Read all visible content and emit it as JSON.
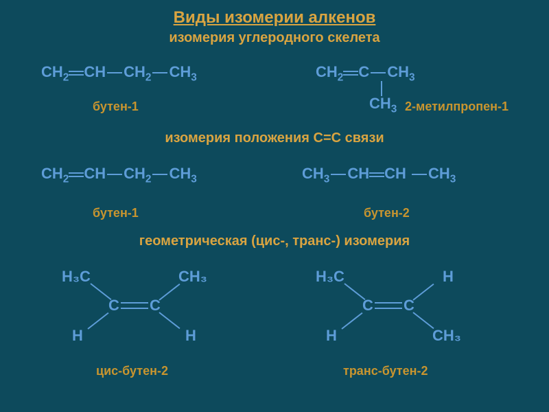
{
  "colors": {
    "background": "#0d4a5c",
    "title": "#d9a441",
    "formula": "#5e9dd8",
    "label": "#c8952f"
  },
  "fontsizes": {
    "title": 24,
    "subtitle": 20,
    "section": 20,
    "formula": 22,
    "label": 18
  },
  "title": "Виды изомерии алкенов",
  "subtitle1": "изомерия углеродного скелета",
  "section2": "изомерия положения С=С связи",
  "section3": "геометрическая (цис-, транс-) изомерия",
  "formulas": {
    "butene1_a": "CH₂=CH—CH₂—CH₃",
    "methylpropene_top": "CH₂=C—CH₃",
    "methylpropene_bottom": "CH₃",
    "butene1_b": "CH₂=CH—CH₂—CH₃",
    "butene2": "CH₃—CH=CH —CH₃"
  },
  "labels": {
    "butene1_a": "бутен-1",
    "methylpropene": "2-метилпропен-1",
    "butene1_b": "бутен-1",
    "butene2": "бутен-2",
    "cis": "цис-бутен-2",
    "trans": "транс-бутен-2"
  },
  "cistrans": {
    "groups": {
      "ch3": "CH₃",
      "h3c": "H₃C",
      "h": "H",
      "c": "C"
    },
    "cis": {
      "tl": "H₃C",
      "tr": "CH₃",
      "bl": "H",
      "br": "H"
    },
    "trans": {
      "tl": "H₃C",
      "tr": "H",
      "bl": "H",
      "br": "CH₃"
    }
  }
}
